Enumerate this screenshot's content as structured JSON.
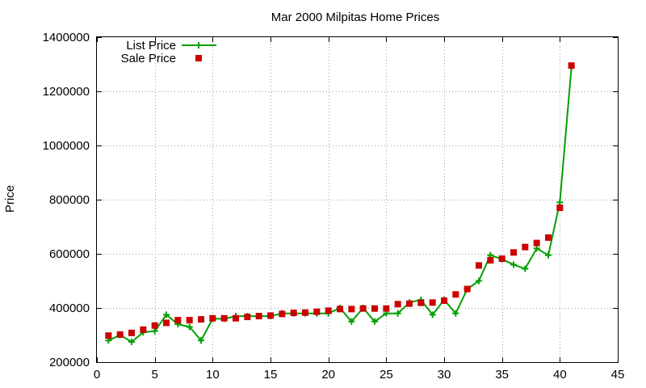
{
  "chart_data": {
    "type": "line",
    "title": "Mar 2000 Milpitas Home Prices",
    "xlabel": "",
    "ylabel": "Price",
    "xlim": [
      0,
      45
    ],
    "ylim": [
      200000,
      1400000
    ],
    "xticks": [
      0,
      5,
      10,
      15,
      20,
      25,
      30,
      35,
      40,
      45
    ],
    "yticks": [
      200000,
      400000,
      600000,
      800000,
      1000000,
      1200000,
      1400000
    ],
    "grid": true,
    "legend_position": "top-left",
    "x": [
      1,
      2,
      3,
      4,
      5,
      6,
      7,
      8,
      9,
      10,
      11,
      12,
      13,
      14,
      15,
      16,
      17,
      18,
      19,
      20,
      21,
      22,
      23,
      24,
      25,
      26,
      27,
      28,
      29,
      30,
      31,
      32,
      33,
      34,
      35,
      36,
      37,
      38,
      39,
      40,
      41
    ],
    "series": [
      {
        "name": "List Price",
        "style": "line-with-plus-markers",
        "color": "#00a000",
        "values": [
          280000,
          300000,
          275000,
          310000,
          315000,
          375000,
          340000,
          330000,
          280000,
          360000,
          360000,
          370000,
          370000,
          370000,
          370000,
          380000,
          380000,
          380000,
          380000,
          380000,
          400000,
          350000,
          400000,
          350000,
          380000,
          380000,
          420000,
          430000,
          375000,
          430000,
          380000,
          470000,
          500000,
          595000,
          580000,
          560000,
          545000,
          620000,
          595000,
          790000,
          1290000
        ]
      },
      {
        "name": "Sale Price",
        "style": "square-markers",
        "color": "#cc0000",
        "values": [
          298000,
          302000,
          308000,
          320000,
          335000,
          345000,
          355000,
          355000,
          358000,
          362000,
          362000,
          362000,
          367000,
          370000,
          372000,
          378000,
          382000,
          383000,
          386000,
          390000,
          396000,
          396000,
          398000,
          398000,
          398000,
          414000,
          416000,
          419000,
          420000,
          427000,
          450000,
          470000,
          557000,
          576000,
          582000,
          605000,
          625000,
          640000,
          660000,
          770000,
          1295000
        ]
      }
    ]
  }
}
